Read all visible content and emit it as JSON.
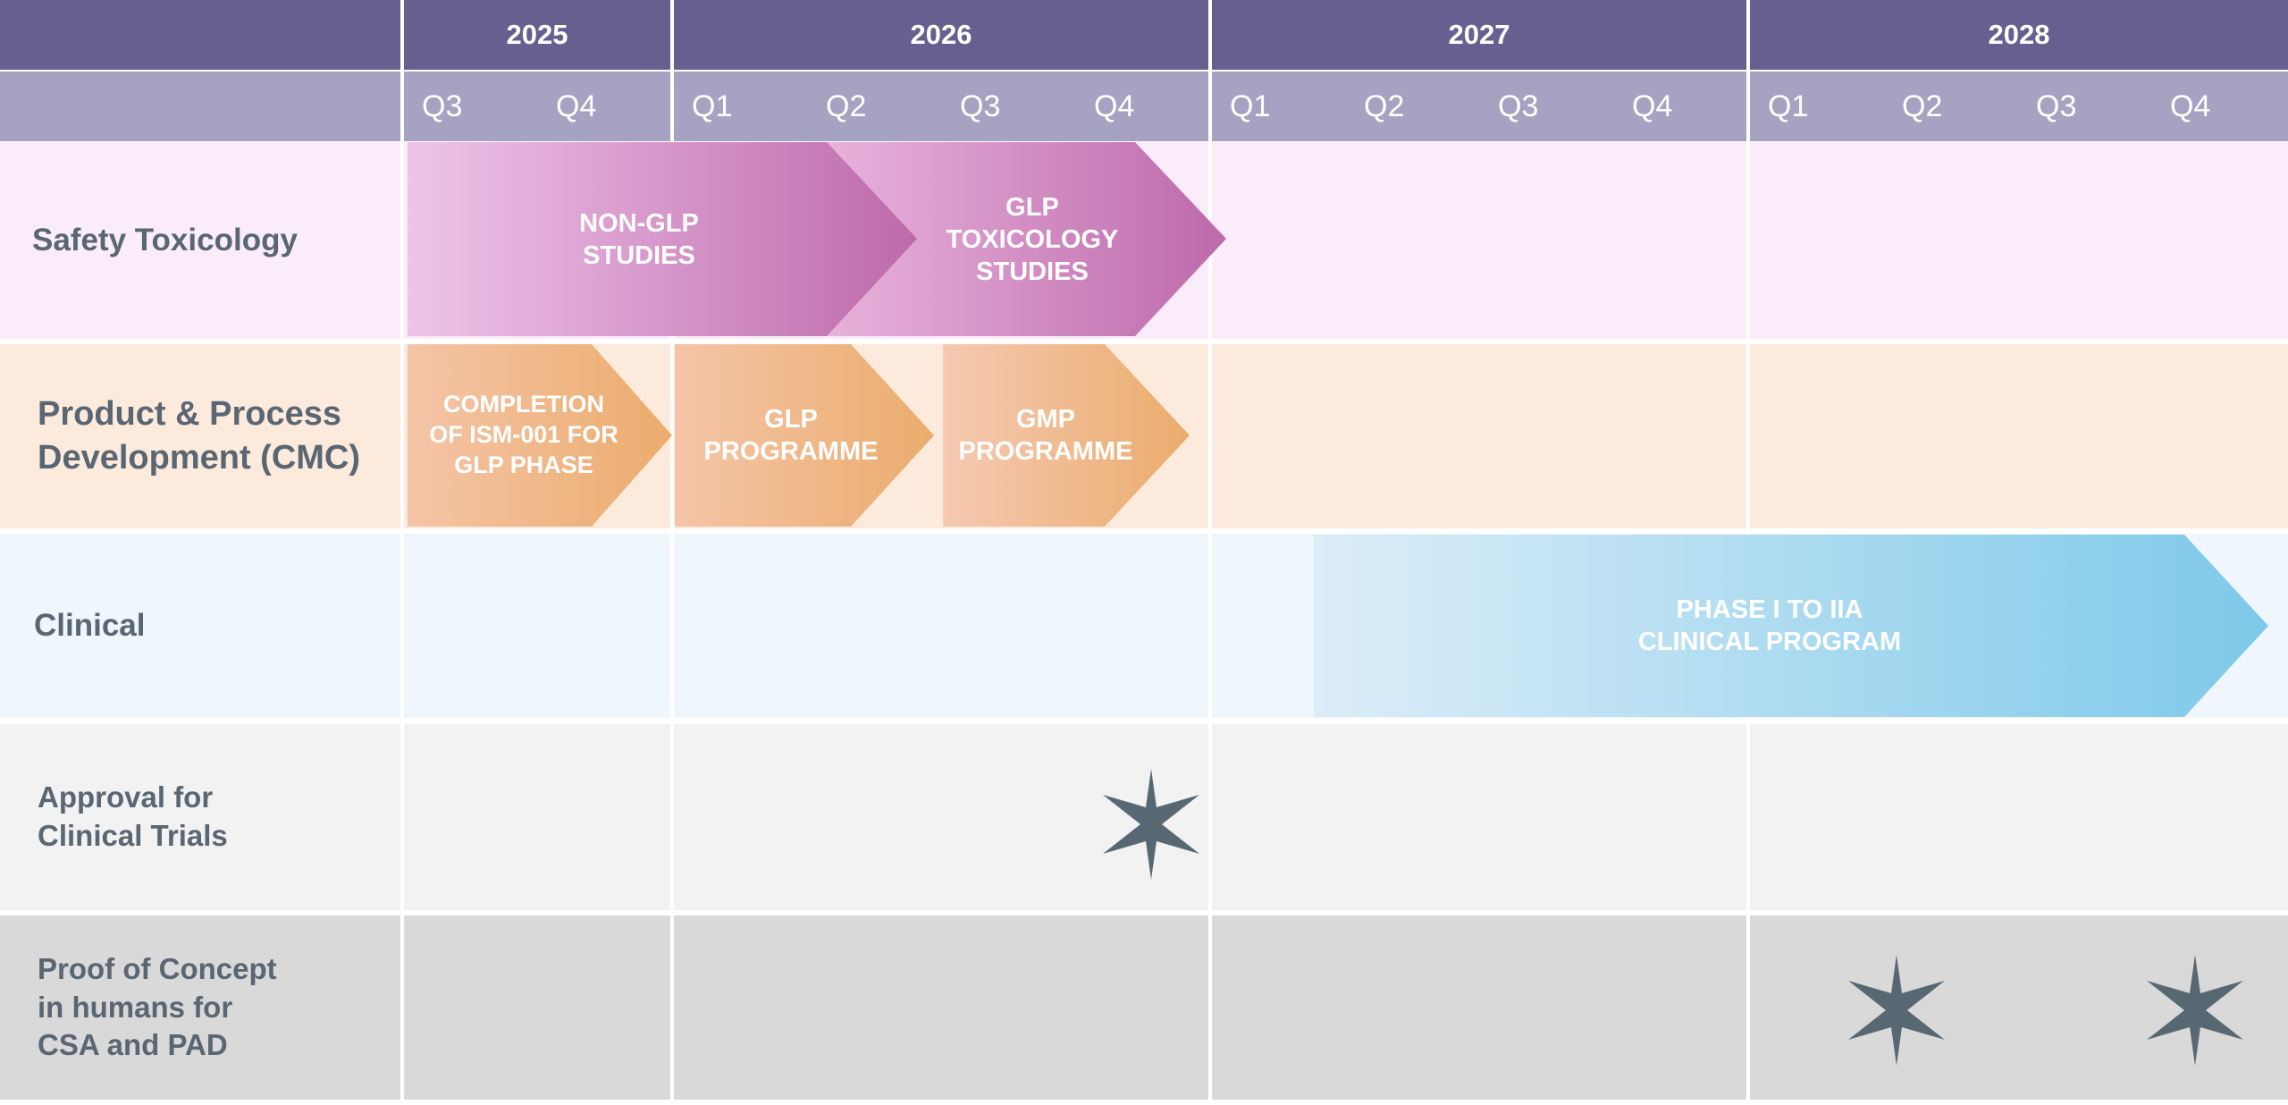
{
  "header": {
    "years": [
      {
        "label": "2025",
        "color": "#665f90"
      },
      {
        "label": "2026",
        "color": "#665f90"
      },
      {
        "label": "2027",
        "color": "#665f90"
      },
      {
        "label": "2028",
        "color": "#665f90"
      }
    ],
    "quarters": [
      "Q3",
      "Q4",
      "Q1",
      "Q2",
      "Q3",
      "Q4",
      "Q1",
      "Q2",
      "Q3",
      "Q4",
      "Q1",
      "Q2",
      "Q3",
      "Q4"
    ],
    "year_color": "#665f90",
    "quarter_color": "#a6a2c1"
  },
  "rows": [
    {
      "label": "Safety Toxicology",
      "background": "#fbecfa",
      "bars": [
        {
          "label": "NON-GLP\nSTUDIES",
          "color_start": "#efc4ea",
          "color_end": "#bd6aaa"
        },
        {
          "label": "GLP\nTOXICOLOGY\nSTUDIES",
          "color_start": "#e7b2dc",
          "color_end": "#bd6aaa"
        }
      ]
    },
    {
      "label": "Product & Process\nDevelopment (CMC)",
      "background": "#fcebdc",
      "bars": [
        {
          "label": "COMPLETION\nOF ISM-001 FOR\nGLP PHASE",
          "color_start": "#f5c5a8",
          "color_end": "#ebac6c"
        },
        {
          "label": "GLP\nPROGRAMME",
          "color_start": "#f5c5a8",
          "color_end": "#ebac6c"
        },
        {
          "label": "GMP\nPROGRAMME",
          "color_start": "#f5c9b2",
          "color_end": "#ebac6c"
        }
      ]
    },
    {
      "label": "Clinical",
      "background": "#eff7fd",
      "bars": [
        {
          "label": "PHASE I TO IIA\nCLINICAL PROGRAM",
          "color_start": "#dcedf8",
          "color_end": "#7dc9e9"
        }
      ]
    },
    {
      "label": "Approval for\nClinical Trials",
      "background": "#f2f2f2",
      "milestones": [
        {
          "icon": "six-point-star-icon",
          "quarter": "2026 Q4"
        }
      ]
    },
    {
      "label": "Proof of Concept\nin humans for\nCSA and PAD",
      "background": "#d9d9d9",
      "milestones": [
        {
          "icon": "six-point-star-icon",
          "quarter": "2028 Q2"
        },
        {
          "icon": "six-point-star-icon",
          "quarter": "2028 Q4"
        }
      ]
    }
  ],
  "milestone_color": "#586873"
}
